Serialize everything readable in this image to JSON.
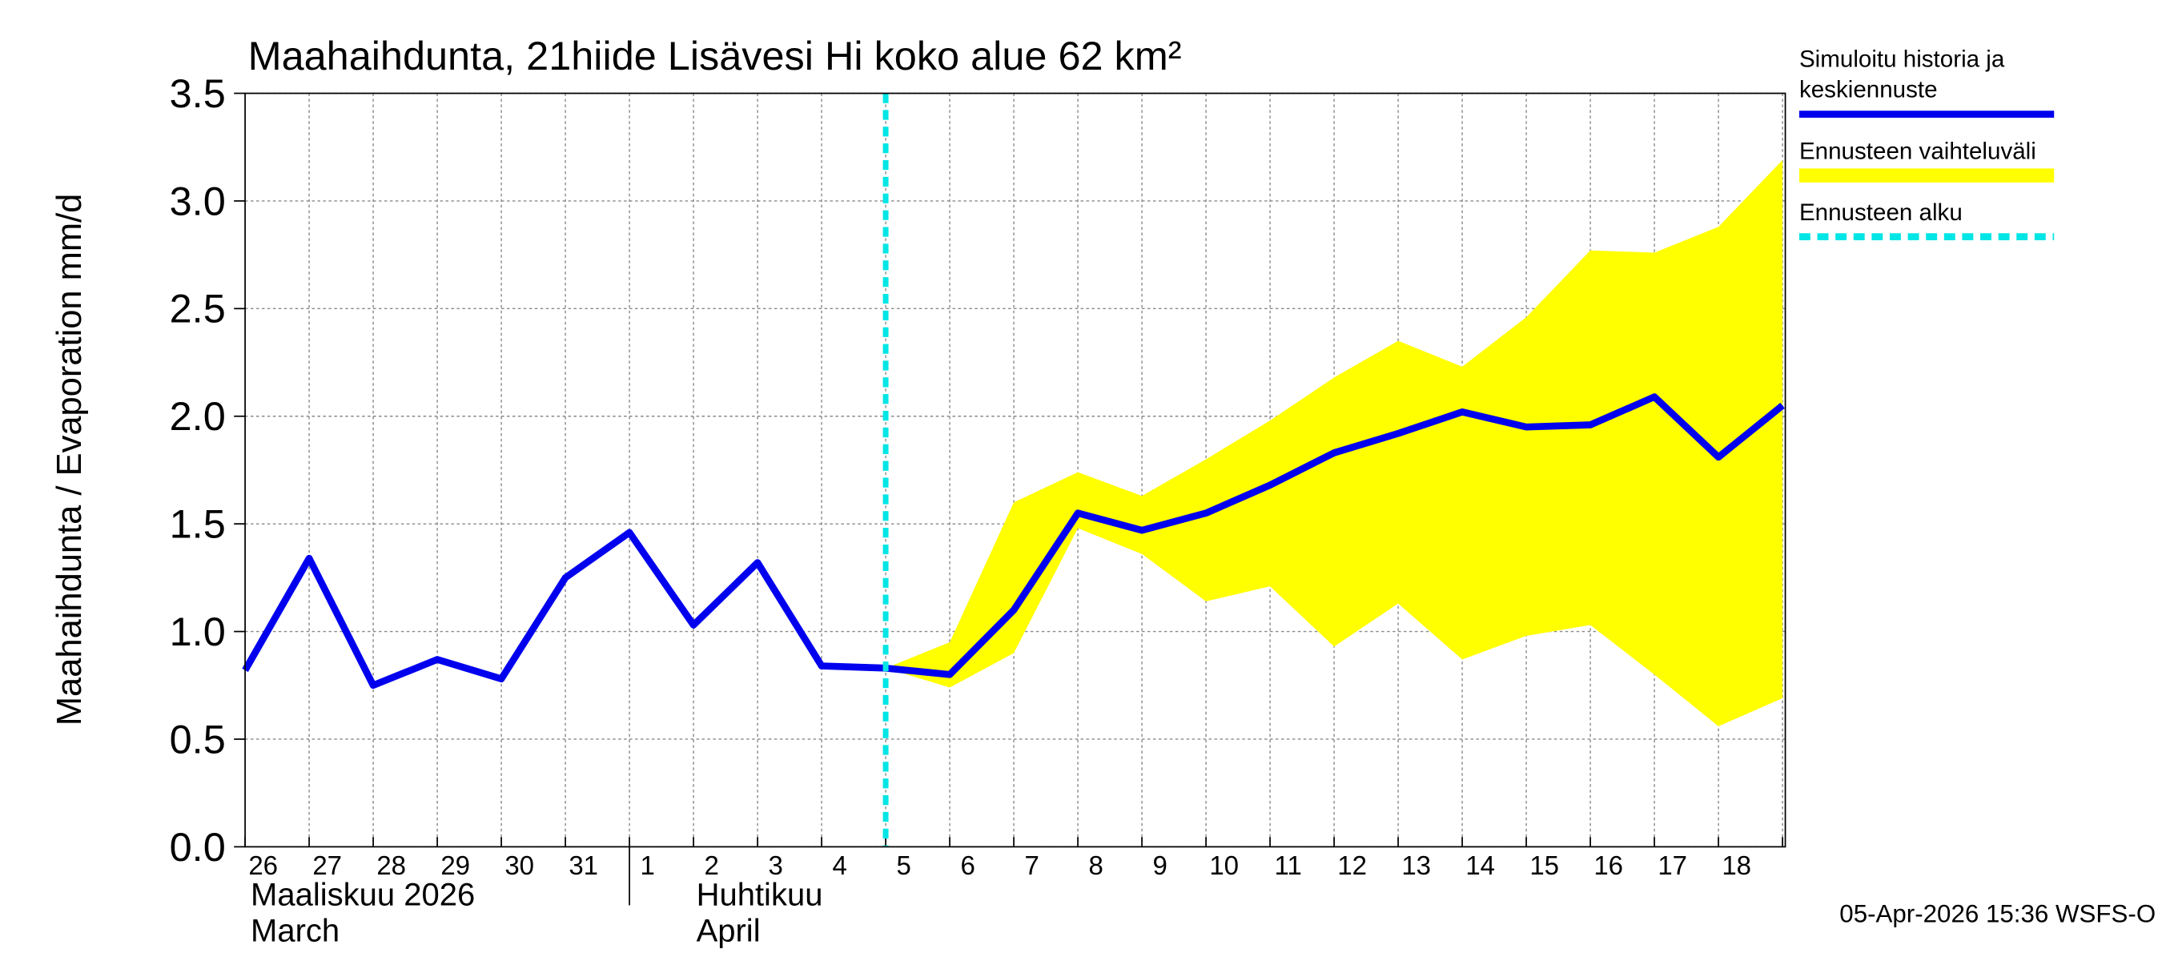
{
  "chart_data": {
    "type": "line",
    "title": "Maahaihdunta, 21hiide Lisävesi Hi koko alue 62 km²",
    "y_label": "Maahaihdunta / Evaporation   mm/d",
    "categories": [
      "26",
      "27",
      "28",
      "29",
      "30",
      "31",
      "1",
      "2",
      "3",
      "4",
      "5",
      "6",
      "7",
      "8",
      "9",
      "10",
      "11",
      "12",
      "13",
      "14",
      "15",
      "16",
      "17",
      "18",
      null
    ],
    "month_labels": [
      [
        "Maaliskuu 2026",
        "March"
      ],
      [
        "Huhtikuu",
        "April"
      ]
    ],
    "series": [
      {
        "name": "Ennusteen vaihteluväli",
        "type": "band",
        "color": "#ffff00",
        "upper": [
          null,
          null,
          null,
          null,
          null,
          null,
          null,
          null,
          null,
          null,
          0.83,
          0.95,
          1.6,
          1.74,
          1.63,
          1.8,
          1.98,
          2.18,
          2.35,
          2.23,
          2.46,
          2.77,
          2.76,
          2.88,
          3.19
        ],
        "lower": [
          null,
          null,
          null,
          null,
          null,
          null,
          null,
          null,
          null,
          null,
          0.83,
          0.74,
          0.9,
          1.48,
          1.36,
          1.14,
          1.21,
          0.93,
          1.13,
          0.87,
          0.98,
          1.03,
          0.8,
          0.56,
          0.69
        ]
      },
      {
        "name": "Simuloitu historia ja keskiennuste",
        "type": "line",
        "color": "#0000ee",
        "values": [
          0.82,
          1.34,
          0.75,
          0.87,
          0.78,
          1.25,
          1.46,
          1.03,
          1.32,
          0.84,
          0.83,
          0.8,
          1.1,
          1.55,
          1.47,
          1.55,
          1.68,
          1.83,
          1.92,
          2.02,
          1.95,
          1.96,
          2.09,
          1.81,
          2.05
        ]
      }
    ],
    "forecast_start": {
      "name": "Ennusteen alku",
      "color": "#00e5e5",
      "x": "5"
    },
    "ylim": [
      0,
      3.5
    ],
    "yticks": [
      {
        "value": 0,
        "label": "0.0"
      },
      {
        "value": 0.5,
        "label": "0.5"
      },
      {
        "value": 1,
        "label": "1.0"
      },
      {
        "value": 1.5,
        "label": "1.5"
      },
      {
        "value": 2,
        "label": "2.0"
      },
      {
        "value": 2.5,
        "label": "2.5"
      },
      {
        "value": 3,
        "label": "3.0"
      },
      {
        "value": 3.5,
        "label": "3.5"
      }
    ],
    "grid": true,
    "footer": "05-Apr-2026 15:36 WSFS-O"
  }
}
